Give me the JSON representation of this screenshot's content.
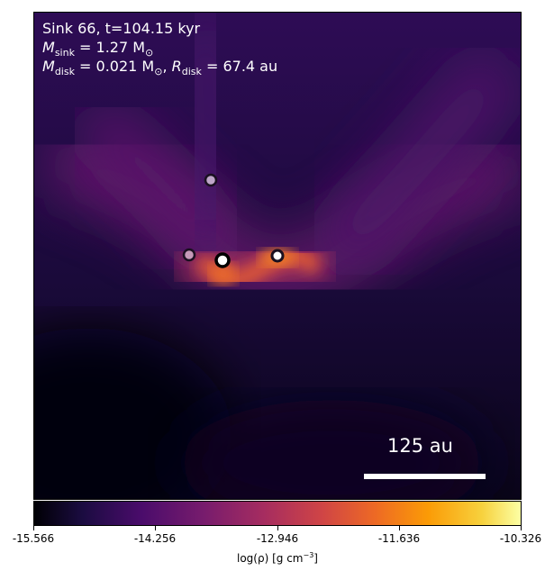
{
  "annotation": {
    "line1": "Sink 66, t=104.15 kyr",
    "msink_symbol": "M",
    "msink_sub": "sink",
    "msink_value": " = 1.27 M",
    "msink_sun": "⊙",
    "mdisk_symbol": "M",
    "mdisk_sub": "disk",
    "mdisk_value": " = 0.021 M",
    "mdisk_sun": "⊙",
    "rdisk_sep": ", ",
    "rdisk_symbol": "R",
    "rdisk_sub": "disk",
    "rdisk_value": " = 67.4 au"
  },
  "scalebar": {
    "label": "125 au"
  },
  "colorbar": {
    "ticks": [
      "-15.566",
      "-14.256",
      "-12.946",
      "-11.636",
      "-10.326"
    ],
    "label_prefix": "log(ρ) [g cm",
    "label_exp": "−3",
    "label_suffix": "]"
  },
  "sinks": [
    {
      "name": "sink-a",
      "fill": "#bfa6c9"
    },
    {
      "name": "sink-b",
      "fill": "#c59ab8"
    },
    {
      "name": "sink-c",
      "fill": "#ffffff"
    },
    {
      "name": "sink-d",
      "fill": "#ffffff"
    }
  ]
}
